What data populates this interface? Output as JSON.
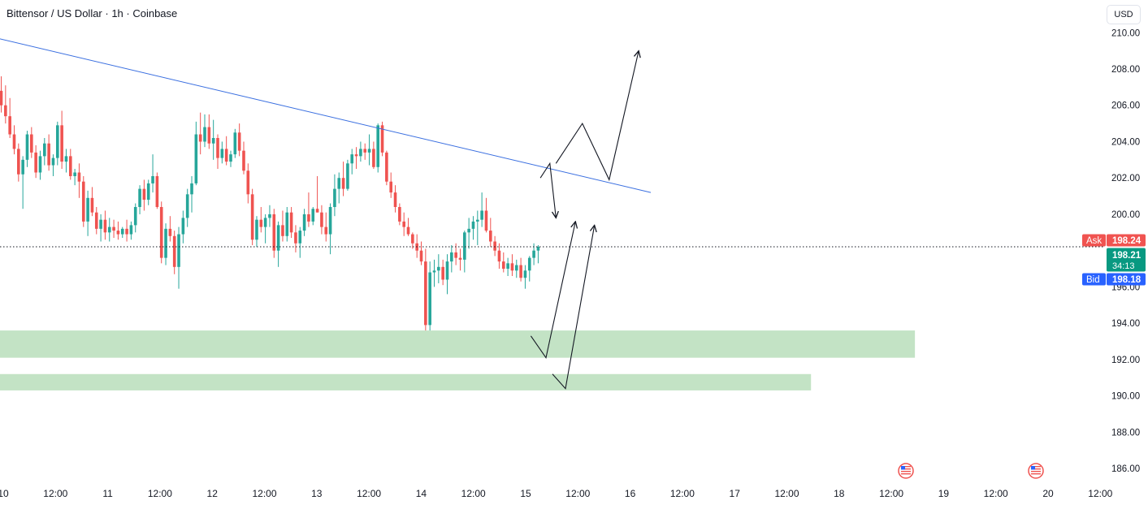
{
  "header": {
    "title": "Bittensor / US Dollar · 1h · Coinbase"
  },
  "currency_button": "USD",
  "price_scale": {
    "ticks": [
      "210.00",
      "208.00",
      "206.00",
      "204.00",
      "202.00",
      "200.00",
      "196.00",
      "194.00",
      "192.00",
      "190.00",
      "188.00",
      "186.00"
    ],
    "ask": {
      "label": "Ask",
      "value": "198.24"
    },
    "last": {
      "value": "198.21",
      "countdown": "34:13"
    },
    "bid": {
      "label": "Bid",
      "value": "198.18"
    }
  },
  "time_axis": [
    "10",
    "12:00",
    "11",
    "12:00",
    "12",
    "12:00",
    "13",
    "12:00",
    "14",
    "12:00",
    "15",
    "12:00",
    "16",
    "12:00",
    "17",
    "12:00",
    "18",
    "12:00",
    "19",
    "12:00",
    "20",
    "12:00"
  ],
  "colors": {
    "up": "#26a69a",
    "down": "#ef5350",
    "trendline": "#3a6fe0",
    "zone": "#c3e3c5",
    "ask": "#f05350",
    "last": "#089981",
    "bid": "#2962ff"
  },
  "chart_data": {
    "type": "candlestick",
    "symbol": "Bittensor / US Dollar",
    "interval": "1h",
    "exchange": "Coinbase",
    "ylim": [
      185.2,
      211.8
    ],
    "current_price": 198.21,
    "candles": [
      [
        206.8,
        207.6,
        205.6,
        206.0
      ],
      [
        206.0,
        207.1,
        205.0,
        205.4
      ],
      [
        205.4,
        206.4,
        204.2,
        204.4
      ],
      [
        204.4,
        204.9,
        203.3,
        203.6
      ],
      [
        203.6,
        203.9,
        201.8,
        202.2
      ],
      [
        202.2,
        203.2,
        200.3,
        203.0
      ],
      [
        203.0,
        204.6,
        202.6,
        204.4
      ],
      [
        204.4,
        204.8,
        203.1,
        203.4
      ],
      [
        203.4,
        203.8,
        202.0,
        202.3
      ],
      [
        202.3,
        203.5,
        201.9,
        203.2
      ],
      [
        203.2,
        204.2,
        202.7,
        203.9
      ],
      [
        203.9,
        204.4,
        202.4,
        202.7
      ],
      [
        202.7,
        203.3,
        202.1,
        203.1
      ],
      [
        203.1,
        205.1,
        202.7,
        204.9
      ],
      [
        204.9,
        205.7,
        202.5,
        202.9
      ],
      [
        202.9,
        203.6,
        202.3,
        203.2
      ],
      [
        203.2,
        203.6,
        201.9,
        202.1
      ],
      [
        202.1,
        202.5,
        201.6,
        202.3
      ],
      [
        202.3,
        202.8,
        200.9,
        201.8
      ],
      [
        201.8,
        202.1,
        199.3,
        199.6
      ],
      [
        199.6,
        201.3,
        198.8,
        200.9
      ],
      [
        200.9,
        201.5,
        199.9,
        200.1
      ],
      [
        200.1,
        200.4,
        198.9,
        199.2
      ],
      [
        199.2,
        200.0,
        198.5,
        199.7
      ],
      [
        199.7,
        200.2,
        198.6,
        199.0
      ],
      [
        199.0,
        199.8,
        198.5,
        199.3
      ],
      [
        199.3,
        199.7,
        198.7,
        199.1
      ],
      [
        199.1,
        199.6,
        198.6,
        198.9
      ],
      [
        198.9,
        199.3,
        198.7,
        199.2
      ],
      [
        199.2,
        199.7,
        198.5,
        198.9
      ],
      [
        198.9,
        199.6,
        198.6,
        199.4
      ],
      [
        199.4,
        200.6,
        199.0,
        200.4
      ],
      [
        200.4,
        201.6,
        200.0,
        201.4
      ],
      [
        201.4,
        201.9,
        200.2,
        200.8
      ],
      [
        200.8,
        201.9,
        200.5,
        201.7
      ],
      [
        201.7,
        203.3,
        201.2,
        202.1
      ],
      [
        202.1,
        202.3,
        200.3,
        200.4
      ],
      [
        200.4,
        200.7,
        197.3,
        197.6
      ],
      [
        197.6,
        199.5,
        197.2,
        199.2
      ],
      [
        199.2,
        199.9,
        198.5,
        198.8
      ],
      [
        198.8,
        199.1,
        196.7,
        197.1
      ],
      [
        197.1,
        199.3,
        195.9,
        198.9
      ],
      [
        198.9,
        200.2,
        198.4,
        199.8
      ],
      [
        199.8,
        201.4,
        199.3,
        201.1
      ],
      [
        201.1,
        202.1,
        200.1,
        201.7
      ],
      [
        201.7,
        205.1,
        201.6,
        204.4
      ],
      [
        204.4,
        205.6,
        203.3,
        204.0
      ],
      [
        204.0,
        205.5,
        203.7,
        204.8
      ],
      [
        204.8,
        205.5,
        203.6,
        203.9
      ],
      [
        203.9,
        205.2,
        203.0,
        204.2
      ],
      [
        204.2,
        204.4,
        202.5,
        203.1
      ],
      [
        203.1,
        204.0,
        202.8,
        203.6
      ],
      [
        203.6,
        204.3,
        202.7,
        202.9
      ],
      [
        202.9,
        203.5,
        202.6,
        203.3
      ],
      [
        203.3,
        204.7,
        203.1,
        204.5
      ],
      [
        204.5,
        205.0,
        203.2,
        203.5
      ],
      [
        203.5,
        204.0,
        202.2,
        202.4
      ],
      [
        202.4,
        202.8,
        200.6,
        201.1
      ],
      [
        201.1,
        201.4,
        198.3,
        198.6
      ],
      [
        198.6,
        199.9,
        198.2,
        199.7
      ],
      [
        199.7,
        200.4,
        199.0,
        199.3
      ],
      [
        199.3,
        200.0,
        198.4,
        199.8
      ],
      [
        199.8,
        200.5,
        199.3,
        200.0
      ],
      [
        200.0,
        200.3,
        197.6,
        198.0
      ],
      [
        198.0,
        199.6,
        197.1,
        199.4
      ],
      [
        199.4,
        200.2,
        198.5,
        198.8
      ],
      [
        198.8,
        200.4,
        198.5,
        200.1
      ],
      [
        200.1,
        200.4,
        198.7,
        199.0
      ],
      [
        199.0,
        199.4,
        197.9,
        198.4
      ],
      [
        198.4,
        199.3,
        197.6,
        199.1
      ],
      [
        199.1,
        200.3,
        198.8,
        200.0
      ],
      [
        200.0,
        201.2,
        199.3,
        199.6
      ],
      [
        199.6,
        200.4,
        199.4,
        200.3
      ],
      [
        200.3,
        202.1,
        200.1,
        200.1
      ],
      [
        200.1,
        200.5,
        198.9,
        199.3
      ],
      [
        199.3,
        200.1,
        198.5,
        198.9
      ],
      [
        198.9,
        200.6,
        197.8,
        200.4
      ],
      [
        200.4,
        202.2,
        199.9,
        201.4
      ],
      [
        201.4,
        202.3,
        200.6,
        202.0
      ],
      [
        202.0,
        202.9,
        201.0,
        201.4
      ],
      [
        201.4,
        203.0,
        201.3,
        202.8
      ],
      [
        202.8,
        203.6,
        202.2,
        203.3
      ],
      [
        203.3,
        203.7,
        202.5,
        203.2
      ],
      [
        203.2,
        204.0,
        202.9,
        203.6
      ],
      [
        203.6,
        203.9,
        203.0,
        203.4
      ],
      [
        203.4,
        204.4,
        202.7,
        203.6
      ],
      [
        203.6,
        204.0,
        202.5,
        202.6
      ],
      [
        202.6,
        205.0,
        202.3,
        204.9
      ],
      [
        204.9,
        205.1,
        203.2,
        203.4
      ],
      [
        203.4,
        203.5,
        201.6,
        201.8
      ],
      [
        201.8,
        202.3,
        200.9,
        201.2
      ],
      [
        201.2,
        201.6,
        200.1,
        200.4
      ],
      [
        200.4,
        200.6,
        199.4,
        199.6
      ],
      [
        199.6,
        200.1,
        198.8,
        199.3
      ],
      [
        199.3,
        199.8,
        198.8,
        198.9
      ],
      [
        198.9,
        199.0,
        198.1,
        198.4
      ],
      [
        198.4,
        198.9,
        197.6,
        198.0
      ],
      [
        198.0,
        198.5,
        197.2,
        197.4
      ],
      [
        197.4,
        198.1,
        193.6,
        193.9
      ],
      [
        193.9,
        197.4,
        193.6,
        196.8
      ],
      [
        196.8,
        197.5,
        196.0,
        196.9
      ],
      [
        196.9,
        197.8,
        196.2,
        197.1
      ],
      [
        197.1,
        197.5,
        196.1,
        196.4
      ],
      [
        196.4,
        197.8,
        195.6,
        197.4
      ],
      [
        197.4,
        198.3,
        196.8,
        197.9
      ],
      [
        197.9,
        198.4,
        197.2,
        197.6
      ],
      [
        197.6,
        198.1,
        196.9,
        197.5
      ],
      [
        197.5,
        199.1,
        196.8,
        199.0
      ],
      [
        199.0,
        199.8,
        198.1,
        199.2
      ],
      [
        199.2,
        199.9,
        198.6,
        199.6
      ],
      [
        199.6,
        200.2,
        198.3,
        199.7
      ],
      [
        199.7,
        201.2,
        199.3,
        200.2
      ],
      [
        200.2,
        200.9,
        199.0,
        199.1
      ],
      [
        199.1,
        199.8,
        198.2,
        198.5
      ],
      [
        198.5,
        198.8,
        197.7,
        198.0
      ],
      [
        198.0,
        198.4,
        197.0,
        197.4
      ],
      [
        197.4,
        197.9,
        196.8,
        197.0
      ],
      [
        197.0,
        197.6,
        196.6,
        197.3
      ],
      [
        197.3,
        197.8,
        196.6,
        196.9
      ],
      [
        196.9,
        197.5,
        196.5,
        197.2
      ],
      [
        197.2,
        197.6,
        196.3,
        196.5
      ],
      [
        196.5,
        197.2,
        195.9,
        196.9
      ],
      [
        196.9,
        197.7,
        196.3,
        197.6
      ],
      [
        197.6,
        198.4,
        197.2,
        198.0
      ],
      [
        198.0,
        198.3,
        197.3,
        198.21
      ]
    ],
    "trendline": {
      "from": {
        "t": -1.0,
        "price": 209.7
      },
      "to": {
        "t": 150.0,
        "price": 201.2
      }
    },
    "support_zones": [
      {
        "low": 192.1,
        "high": 193.6,
        "t_start": -1.0,
        "t_end": 211.0
      },
      {
        "low": 190.3,
        "high": 191.2,
        "t_start": -1.0,
        "t_end": 187.0
      }
    ],
    "projections": [
      [
        [
          124.5,
          202.0
        ],
        [
          126.7,
          202.8
        ],
        [
          128.1,
          199.8
        ]
      ],
      [
        [
          128.1,
          202.8
        ],
        [
          134.2,
          205.0
        ],
        [
          140.4,
          201.9
        ],
        [
          147.2,
          209.0
        ]
      ],
      [
        [
          122.3,
          193.3
        ],
        [
          125.8,
          192.1
        ],
        [
          132.6,
          199.6
        ]
      ],
      [
        [
          127.3,
          191.2
        ],
        [
          130.3,
          190.4
        ],
        [
          137.0,
          199.4
        ]
      ]
    ]
  }
}
